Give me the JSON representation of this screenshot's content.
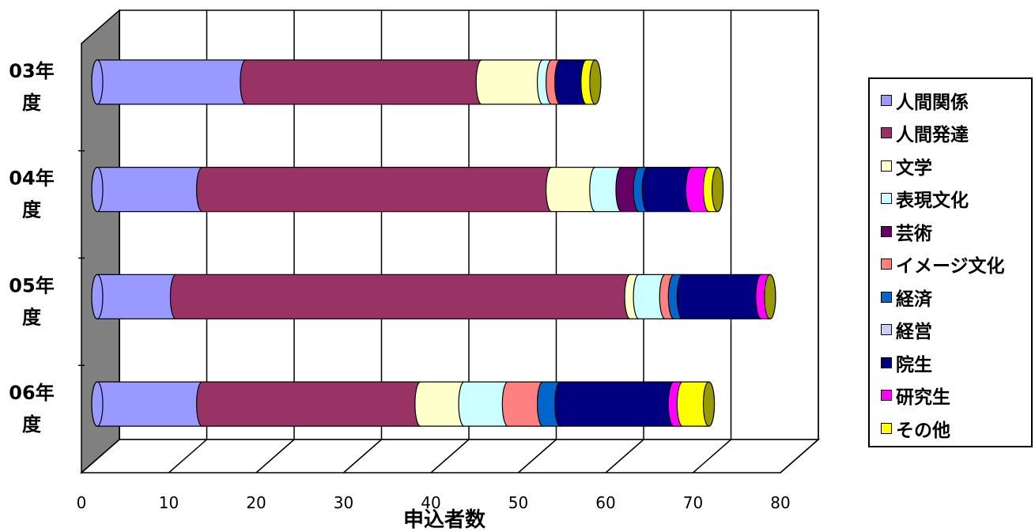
{
  "chart_data": {
    "type": "bar",
    "orientation": "horizontal",
    "stacked": true,
    "style": "3d-cylinder",
    "xlabel": "申込者数",
    "xlim": [
      0,
      80
    ],
    "xticks": [
      "0",
      "10",
      "20",
      "30",
      "40",
      "50",
      "60",
      "70",
      "80"
    ],
    "grid": true,
    "legend_position": "right",
    "categories": [
      [
        "03年",
        "度"
      ],
      [
        "04年",
        "度"
      ],
      [
        "05年",
        "度"
      ],
      [
        "06年",
        "度"
      ]
    ],
    "series": [
      {
        "name": "人間関係",
        "color": "#9999ff",
        "values": [
          17,
          12,
          9,
          12
        ]
      },
      {
        "name": "人間発達",
        "color": "#993366",
        "values": [
          27,
          40,
          52,
          25
        ]
      },
      {
        "name": "文学",
        "color": "#ffffcc",
        "values": [
          7,
          5,
          1,
          5
        ]
      },
      {
        "name": "表現文化",
        "color": "#ccffff",
        "values": [
          1,
          3,
          3,
          5
        ]
      },
      {
        "name": "芸術",
        "color": "#660066",
        "values": [
          0,
          2,
          0,
          0
        ]
      },
      {
        "name": "イメージ文化",
        "color": "#ff8080",
        "values": [
          1,
          0,
          1,
          4
        ]
      },
      {
        "name": "経済",
        "color": "#0066cc",
        "values": [
          0,
          1,
          1,
          2
        ]
      },
      {
        "name": "経営",
        "color": "#ccccff",
        "values": [
          0,
          0,
          0,
          0
        ]
      },
      {
        "name": "院生",
        "color": "#000080",
        "values": [
          3,
          5,
          9,
          13
        ]
      },
      {
        "name": "研究生",
        "color": "#ff00ff",
        "values": [
          0,
          2,
          1,
          1
        ]
      },
      {
        "name": "その他",
        "color": "#ffff00",
        "values": [
          1,
          1,
          0,
          3
        ]
      }
    ]
  }
}
